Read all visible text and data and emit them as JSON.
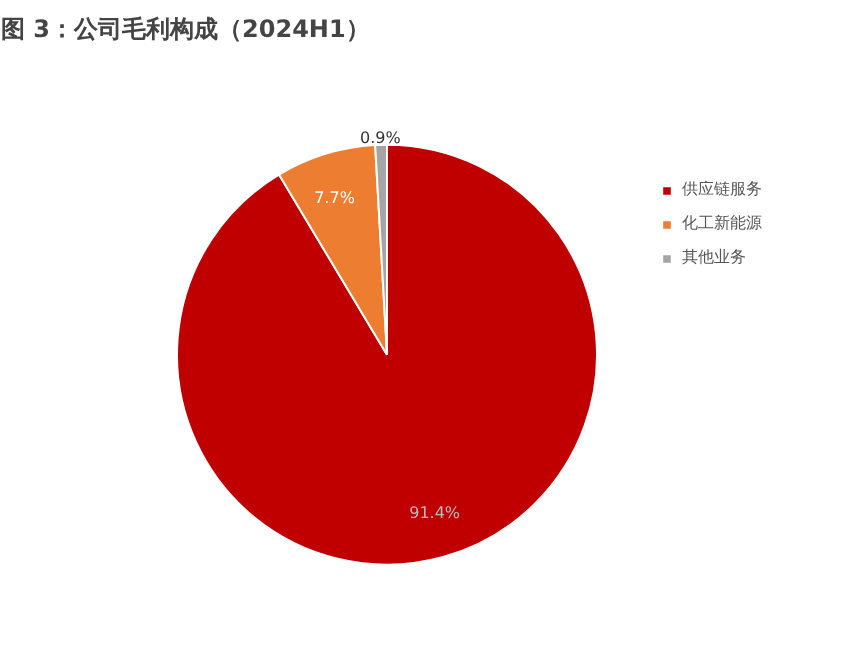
{
  "chart_data": {
    "type": "pie",
    "title": "图 3：公司毛利构成（2024H1）",
    "categories": [
      "供应链服务",
      "化工新能源",
      "其他业务"
    ],
    "values": [
      91.4,
      7.7,
      0.9
    ],
    "colors": [
      "#c00000",
      "#ed7d31",
      "#a5a5a5"
    ],
    "value_labels": [
      "91.4%",
      "7.7%",
      "0.9%"
    ],
    "legend": "right"
  }
}
